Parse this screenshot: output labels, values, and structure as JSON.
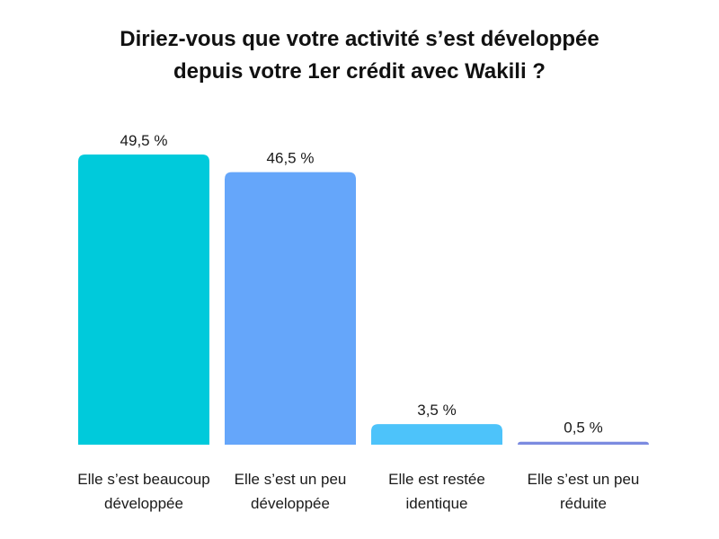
{
  "chart_data": {
    "type": "bar",
    "title_lines": [
      "Diriez-vous que votre activité s’est développée",
      "depuis votre 1er crédit avec Wakili ?"
    ],
    "categories": [
      [
        "Elle s’est beaucoup",
        "développée"
      ],
      [
        "Elle s’est un peu",
        "développée"
      ],
      [
        "Elle est restée",
        "identique"
      ],
      [
        "Elle s’est un peu",
        "réduite"
      ]
    ],
    "values": [
      49.5,
      46.5,
      3.5,
      0.5
    ],
    "value_labels": [
      "49,5 %",
      "46,5 %",
      "3,5 %",
      "0,5 %"
    ],
    "colors": [
      "#00CADB",
      "#65A6FA",
      "#4DC3FA",
      "#7B8BE0"
    ],
    "ylim": [
      0,
      49.5
    ],
    "grid": false,
    "legend": "none"
  }
}
